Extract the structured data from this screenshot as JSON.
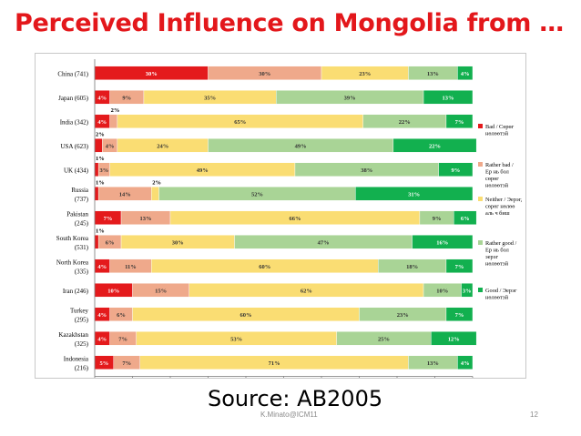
{
  "slide": {
    "title": "Perceived Influence on Mongolia from …",
    "source": "Source: AB2005",
    "footer": "K.Minato@ICM11",
    "page_number": "12"
  },
  "colors": {
    "title": "#e3171b",
    "series": [
      "#e41a1c",
      "#efa98b",
      "#fadd73",
      "#a9d496",
      "#12b04f"
    ]
  },
  "chart_data": {
    "type": "bar",
    "orientation": "horizontal",
    "stacked": true,
    "categories": [
      [
        "China (741)"
      ],
      [
        "Japan (605)"
      ],
      [
        "India (342)"
      ],
      [
        "USA (623)"
      ],
      [
        "UK (434)"
      ],
      [
        "Russia",
        "(737)"
      ],
      [
        "Pakistan",
        "(245)"
      ],
      [
        "South Korea",
        "(531)"
      ],
      [
        "North Korea",
        "(335)"
      ],
      [
        "Iran (246)"
      ],
      [
        "Turkey",
        "(295)"
      ],
      [
        "Kazakhstan",
        "(325)"
      ],
      [
        "Indonesia",
        "(216)"
      ]
    ],
    "series": [
      {
        "name": "Bad / Сөрөг нөлөөтэй",
        "values": [
          30,
          4,
          4,
          2,
          1,
          1,
          7,
          1,
          4,
          10,
          4,
          4,
          5
        ]
      },
      {
        "name": "Rather bad / Ер нь бол сөрөг нөлөөтэй",
        "values": [
          30,
          9,
          2,
          4,
          3,
          14,
          13,
          6,
          11,
          15,
          6,
          7,
          7
        ]
      },
      {
        "name": "Neither / Эерэг, сөрөг нөлөө аль ч биш",
        "values": [
          23,
          35,
          65,
          24,
          49,
          2,
          66,
          30,
          60,
          62,
          60,
          53,
          71
        ]
      },
      {
        "name": "Rather good / Ер нь бол эерэг нөлөөтэй",
        "values": [
          13,
          39,
          22,
          49,
          38,
          52,
          9,
          47,
          18,
          10,
          23,
          25,
          13
        ]
      },
      {
        "name": "Good / Эерэг нөлөөтэй",
        "values": [
          4,
          13,
          7,
          22,
          9,
          31,
          6,
          16,
          7,
          3,
          7,
          12,
          4
        ]
      }
    ],
    "data_labels": [
      [
        "30%",
        "30%",
        "23%",
        "13%",
        "4%"
      ],
      [
        "4%",
        "9%",
        "35%",
        "39%",
        "13%"
      ],
      [
        "4%",
        "2%",
        "65%",
        "22%",
        "7%"
      ],
      [
        "2%",
        "4%",
        "24%",
        "49%",
        "22%"
      ],
      [
        "1%",
        "3%",
        "49%",
        "38%",
        "9%"
      ],
      [
        "1%",
        "14%",
        "2%",
        "52%",
        "31%"
      ],
      [
        "7%",
        "13%",
        "66%",
        "9%",
        "6%"
      ],
      [
        "1%",
        "6%",
        "30%",
        "47%",
        "16%"
      ],
      [
        "4%",
        "11%",
        "60%",
        "18%",
        "7%"
      ],
      [
        "10%",
        "15%",
        "62%",
        "10%",
        "3%"
      ],
      [
        "4%",
        "6%",
        "60%",
        "23%",
        "7%"
      ],
      [
        "4%",
        "7%",
        "53%",
        "25%",
        "12%"
      ],
      [
        "5%",
        "7%",
        "71%",
        "13%",
        "4%"
      ]
    ],
    "xlim": [
      0,
      100
    ],
    "xticks": [
      "0%",
      "10%",
      "20%",
      "30%",
      "40%",
      "50%",
      "60%",
      "70%",
      "80%",
      "90%",
      "100%"
    ],
    "gridlines": false,
    "legend_position": "right"
  }
}
